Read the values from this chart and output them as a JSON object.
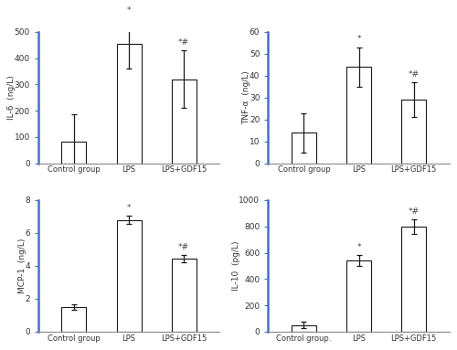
{
  "subplots": [
    {
      "ylabel": "IL-6  (ng/L)",
      "categories": [
        "Control group",
        "LPS",
        "LPS+GDF15"
      ],
      "values": [
        82,
        455,
        320
      ],
      "errors": [
        105,
        95,
        110
      ],
      "ylim": [
        0,
        500
      ],
      "yticks": [
        0,
        100,
        200,
        300,
        400,
        500
      ],
      "annotations": [
        "",
        "*",
        "*#"
      ]
    },
    {
      "ylabel": "TNF-α  (ng/L)",
      "categories": [
        "Control group",
        "LPS",
        "LPS+GDF15"
      ],
      "values": [
        14,
        44,
        29
      ],
      "errors": [
        9,
        9,
        8
      ],
      "ylim": [
        0,
        60
      ],
      "yticks": [
        0,
        10,
        20,
        30,
        40,
        50,
        60
      ],
      "annotations": [
        "",
        "*",
        "*#"
      ]
    },
    {
      "ylabel": "MCP-1  (ng/L)",
      "categories": [
        "Control group",
        "LPS",
        "LPS+GDF15"
      ],
      "values": [
        1.5,
        6.8,
        4.45
      ],
      "errors": [
        0.18,
        0.25,
        0.22
      ],
      "ylim": [
        0,
        8
      ],
      "yticks": [
        0,
        2,
        4,
        6,
        8
      ],
      "annotations": [
        "",
        "*",
        "*#"
      ]
    },
    {
      "ylabel": "IL-10  (pg/L)",
      "categories": [
        "Control group.",
        "LPS",
        "LPS+GDF15"
      ],
      "values": [
        50,
        540,
        800
      ],
      "errors": [
        25,
        40,
        55
      ],
      "ylim": [
        0,
        1000
      ],
      "yticks": [
        0,
        200,
        400,
        600,
        800,
        1000
      ],
      "annotations": [
        "",
        "*",
        "*#"
      ]
    }
  ],
  "bar_color": "#ffffff",
  "bar_edgecolor": "#1a1a1a",
  "bar_width": 0.45,
  "errorbar_color": "#1a1a1a",
  "annotation_color": "#444444",
  "axis_color": "#4472c4",
  "bottom_spine_color": "#888888",
  "tick_color": "#333333",
  "background_color": "#ffffff",
  "fig_width": 5.0,
  "fig_height": 3.83,
  "dpi": 100
}
